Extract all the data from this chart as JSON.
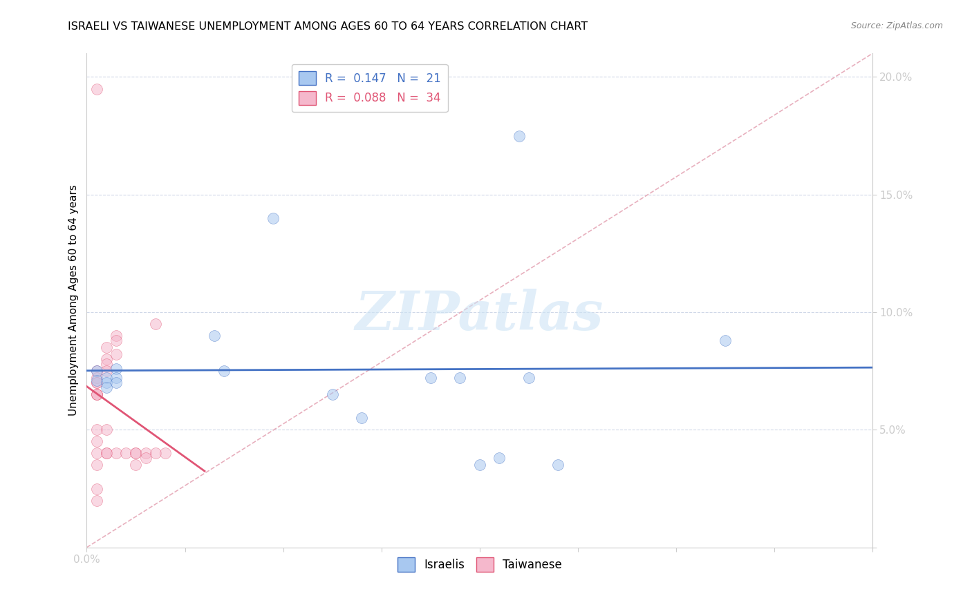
{
  "title": "ISRAELI VS TAIWANESE UNEMPLOYMENT AMONG AGES 60 TO 64 YEARS CORRELATION CHART",
  "source": "Source: ZipAtlas.com",
  "ylabel": "Unemployment Among Ages 60 to 64 years",
  "xlim": [
    0.0,
    0.08
  ],
  "ylim": [
    0.0,
    0.21
  ],
  "yticks": [
    0.0,
    0.05,
    0.1,
    0.15,
    0.2
  ],
  "ytick_labels": [
    "",
    "5.0%",
    "10.0%",
    "15.0%",
    "20.0%"
  ],
  "legend_R_israelis": "0.147",
  "legend_N_israelis": "21",
  "legend_R_taiwanese": "0.088",
  "legend_N_taiwanese": "34",
  "israelis_color": "#a8c8f0",
  "taiwanese_color": "#f5b8cc",
  "trendline_israelis_color": "#4472c4",
  "trendline_taiwanese_color": "#e05575",
  "diagonal_color": "#e8b0be",
  "watermark_text": "ZIPatlas",
  "israelis_x": [
    0.001,
    0.001,
    0.002,
    0.002,
    0.002,
    0.003,
    0.003,
    0.003,
    0.013,
    0.014,
    0.019,
    0.025,
    0.028,
    0.035,
    0.038,
    0.04,
    0.042,
    0.045,
    0.048,
    0.065,
    0.044
  ],
  "israelis_y": [
    0.075,
    0.071,
    0.072,
    0.07,
    0.068,
    0.076,
    0.072,
    0.07,
    0.09,
    0.075,
    0.14,
    0.065,
    0.055,
    0.072,
    0.072,
    0.035,
    0.038,
    0.072,
    0.035,
    0.088,
    0.175
  ],
  "taiwanese_x": [
    0.001,
    0.001,
    0.001,
    0.001,
    0.001,
    0.001,
    0.001,
    0.001,
    0.001,
    0.001,
    0.001,
    0.001,
    0.001,
    0.001,
    0.002,
    0.002,
    0.002,
    0.002,
    0.002,
    0.002,
    0.002,
    0.003,
    0.003,
    0.003,
    0.003,
    0.004,
    0.005,
    0.005,
    0.005,
    0.006,
    0.006,
    0.007,
    0.007,
    0.008
  ],
  "taiwanese_y": [
    0.195,
    0.075,
    0.065,
    0.065,
    0.07,
    0.072,
    0.07,
    0.065,
    0.05,
    0.045,
    0.04,
    0.035,
    0.025,
    0.02,
    0.085,
    0.08,
    0.078,
    0.075,
    0.05,
    0.04,
    0.04,
    0.09,
    0.088,
    0.082,
    0.04,
    0.04,
    0.04,
    0.04,
    0.035,
    0.04,
    0.038,
    0.095,
    0.04,
    0.04
  ],
  "marker_size": 130,
  "marker_alpha": 0.55,
  "grid_color": "#d0d8e8",
  "axis_color": "#5b9bd5",
  "tick_label_color": "#5b9bd5"
}
